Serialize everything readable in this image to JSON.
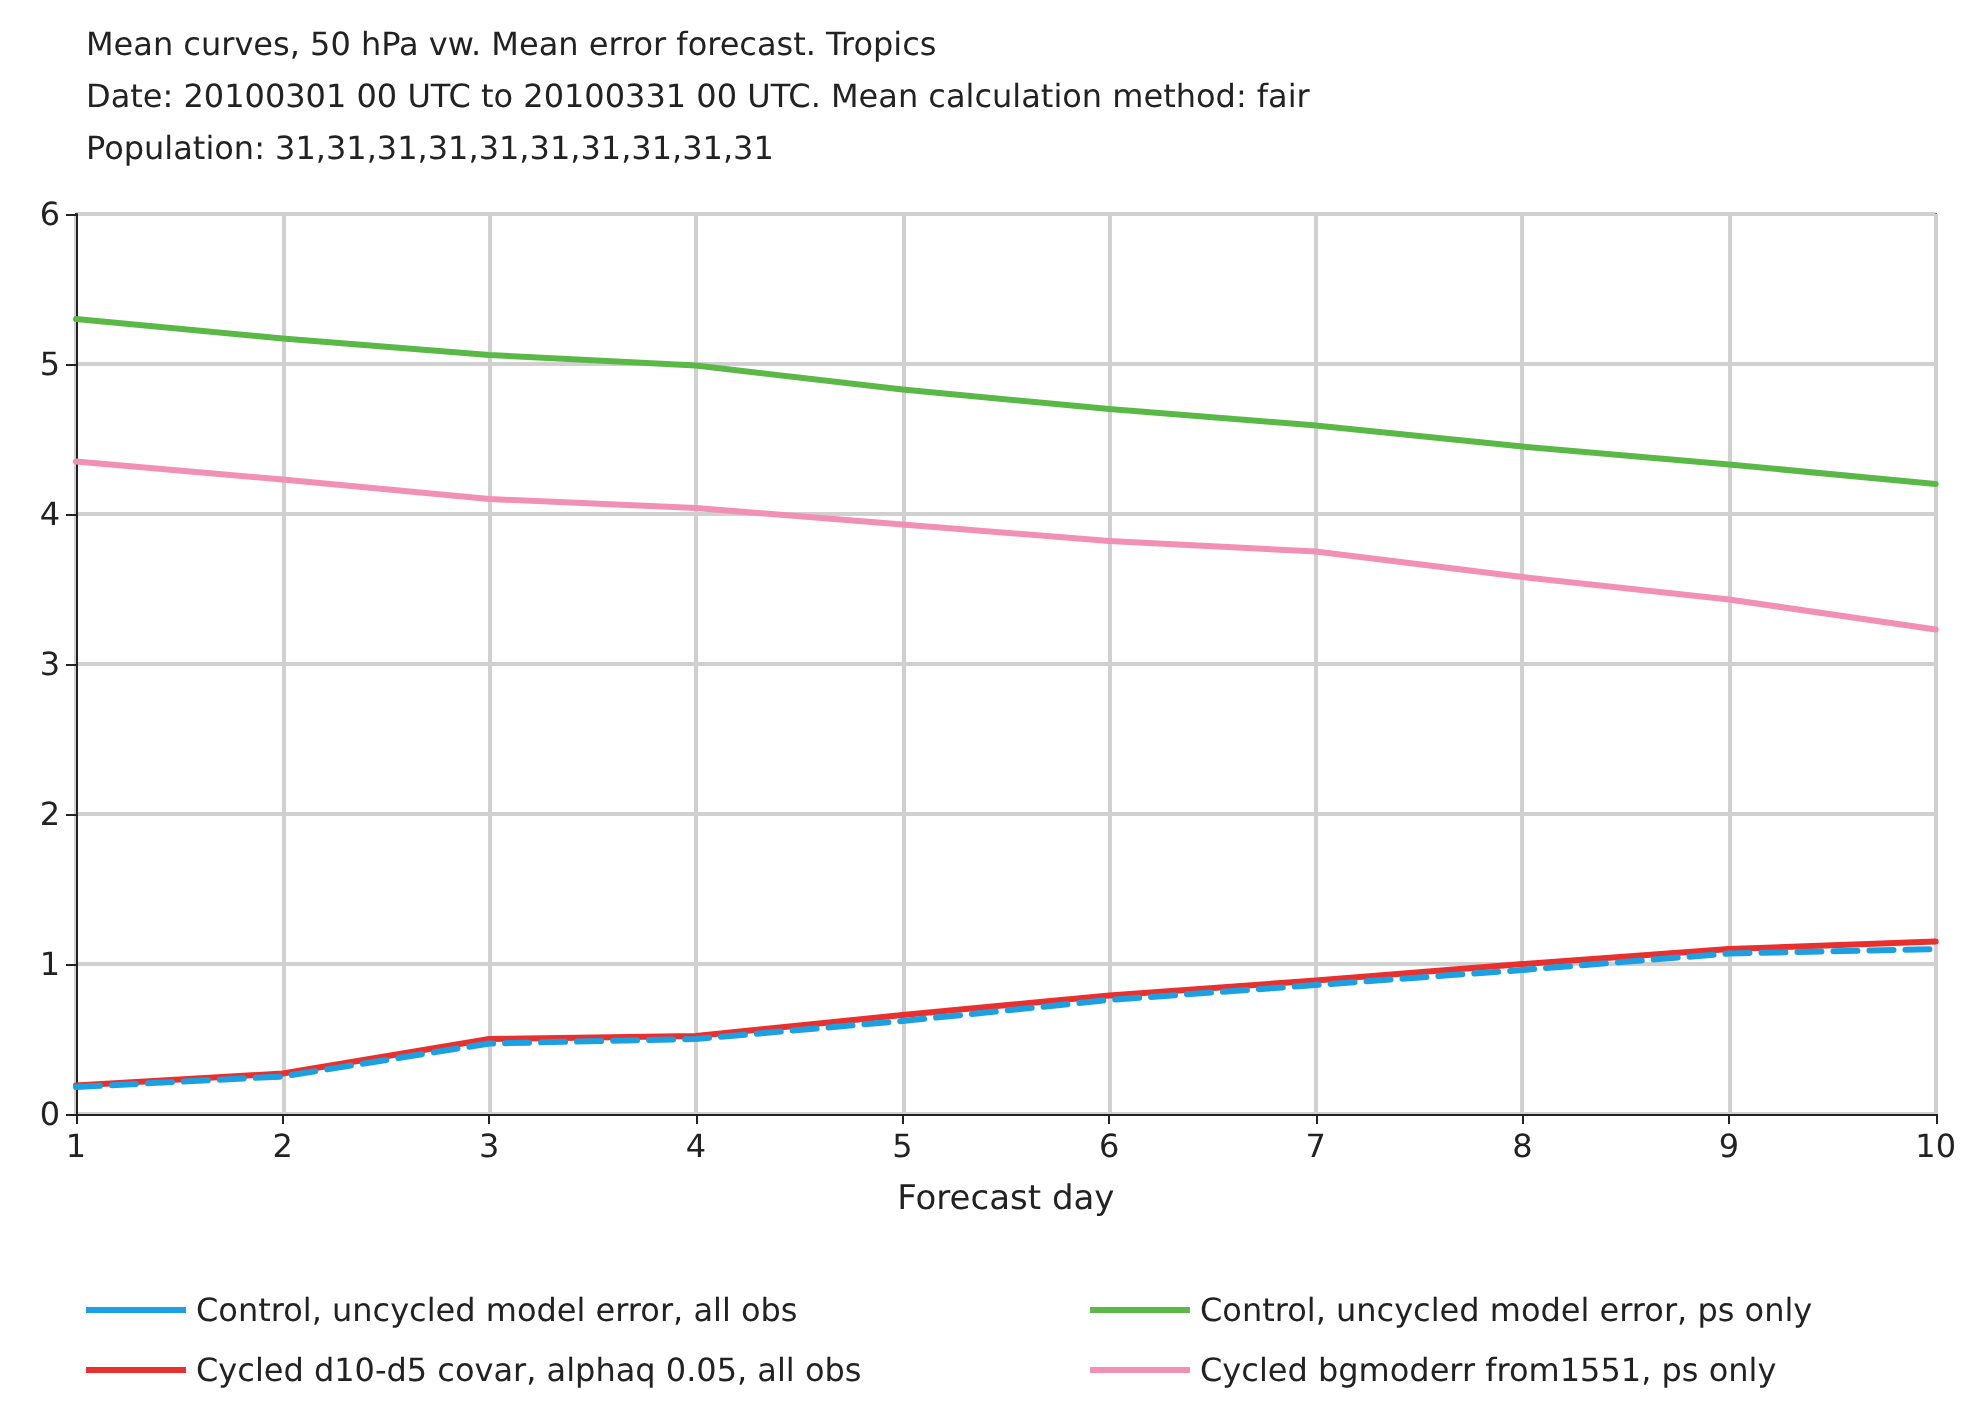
{
  "chart_data": {
    "type": "line",
    "title": "Mean curves, 50 hPa vw. Mean error forecast. Tropics\nDate: 20100301 00 UTC to 20100331 00 UTC. Mean calculation method: fair\nPopulation: 31,31,31,31,31,31,31,31,31,31",
    "xlabel": "Forecast day",
    "x": [
      1,
      2,
      3,
      4,
      5,
      6,
      7,
      8,
      9,
      10
    ],
    "xlim": [
      1,
      10
    ],
    "xticks": [
      1,
      2,
      3,
      4,
      5,
      6,
      7,
      8,
      9,
      10
    ],
    "ylim": [
      0,
      6
    ],
    "yticks": [
      0,
      1,
      2,
      3,
      4,
      5,
      6
    ],
    "grid": true,
    "legend": "bottom",
    "marker": "none",
    "series": [
      {
        "name": "Control, uncycled model error, all obs",
        "color": "#1ba1e2",
        "line_style": "dashed",
        "values": [
          0.18,
          0.25,
          0.47,
          0.5,
          0.62,
          0.76,
          0.86,
          0.96,
          1.07,
          1.1
        ]
      },
      {
        "name": "Control, uncycled model error, ps only",
        "color": "#5ab946",
        "line_style": "solid",
        "values": [
          5.3,
          5.17,
          5.06,
          4.99,
          4.83,
          4.7,
          4.59,
          4.45,
          4.33,
          4.2
        ]
      },
      {
        "name": "Cycled d10-d5 covar, alphaq 0.05, all obs",
        "color": "#e8312f",
        "line_style": "solid",
        "values": [
          0.19,
          0.27,
          0.5,
          0.52,
          0.66,
          0.79,
          0.89,
          1.0,
          1.1,
          1.15
        ]
      },
      {
        "name": "Cycled bgmoderr from1551, ps only",
        "color": "#f190b4",
        "line_style": "solid",
        "values": [
          4.35,
          4.23,
          4.1,
          4.04,
          3.93,
          3.82,
          3.75,
          3.58,
          3.43,
          3.23
        ]
      }
    ]
  }
}
